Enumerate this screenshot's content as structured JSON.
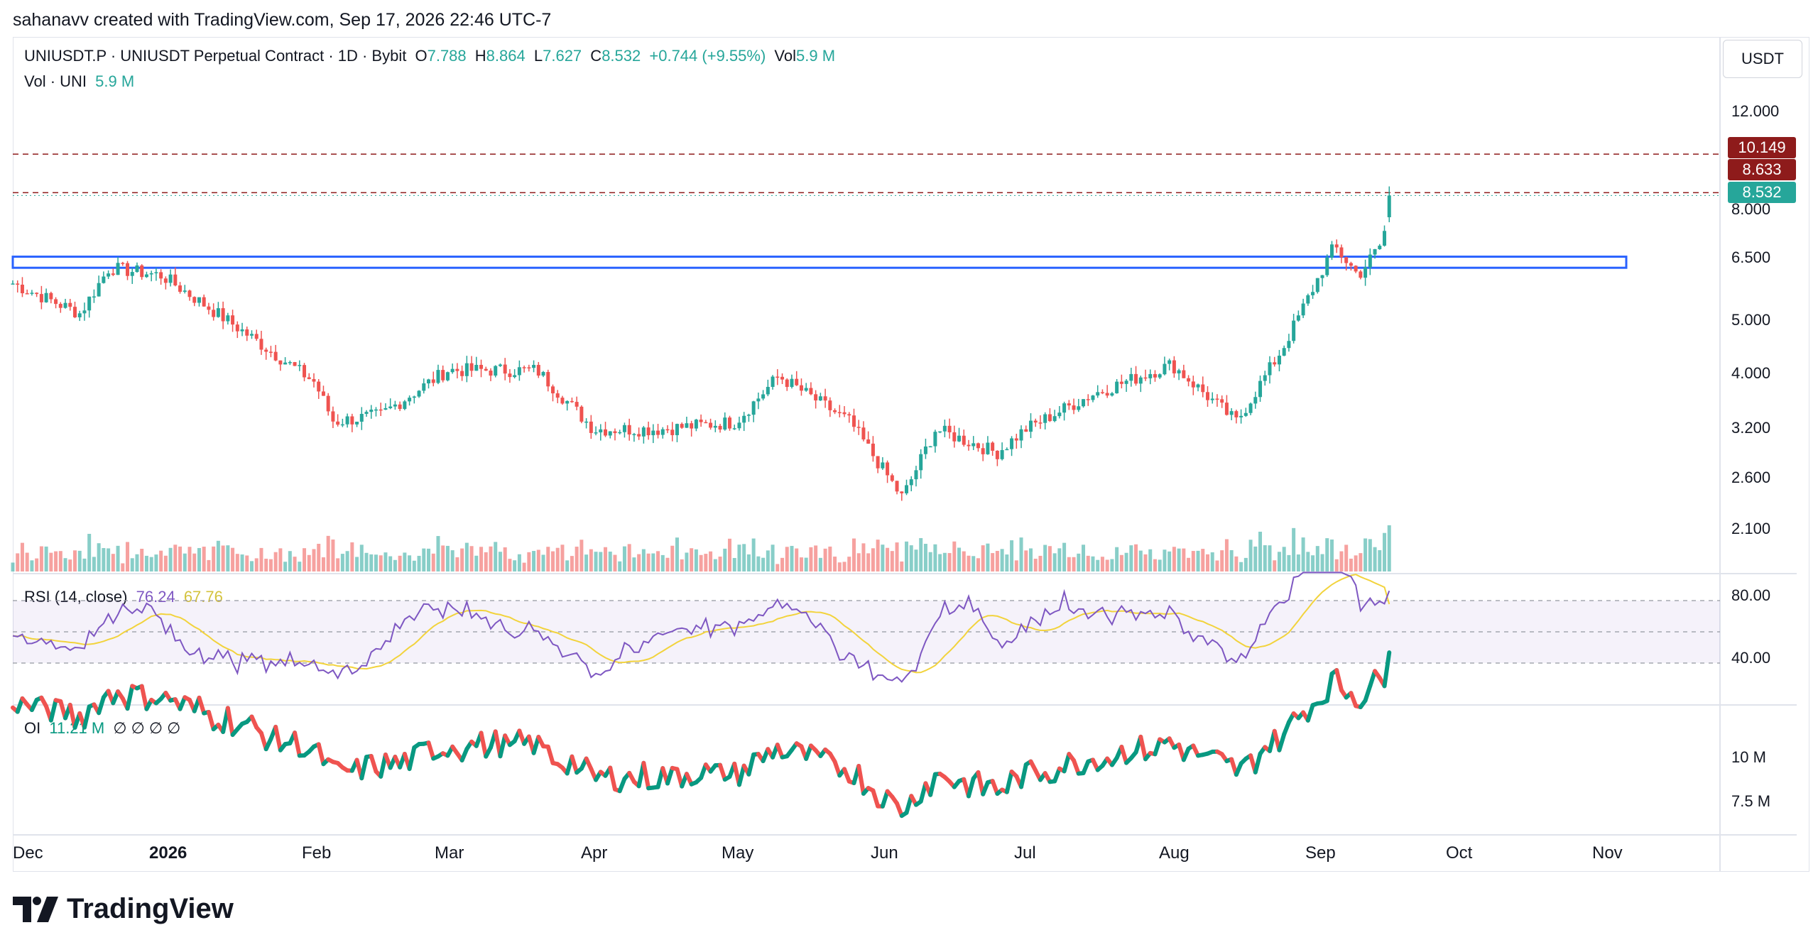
{
  "caption": "sahanavv created with TradingView.com, Sep 17, 2026 22:46 UTC-7",
  "price_axis_title": "USDT",
  "legend_main": {
    "symbol": "UNIUSDT.P · UNIUSDT Perpetual Contract · 1D · Bybit",
    "o_label": "O",
    "o_value": "7.788",
    "h_label": "H",
    "h_value": "8.864",
    "l_label": "L",
    "l_value": "7.627",
    "c_label": "C",
    "c_value": "8.532",
    "change": "+0.744 (+9.55%)",
    "vol_label": "Vol",
    "vol_value": "5.9 M"
  },
  "legend_vol": {
    "label": "Vol · UNI",
    "value": "5.9 M"
  },
  "legend_rsi": {
    "label": "RSI (14, close)",
    "rsi": "76.24",
    "ma": "67.76"
  },
  "legend_oi": {
    "label": "OI",
    "value": "11.21 M",
    "extras": "∅ ∅ ∅ ∅"
  },
  "price_ticks": [
    "12.000",
    "8.000",
    "6.500",
    "5.000",
    "4.000",
    "3.200",
    "2.600",
    "2.100"
  ],
  "price_tags": [
    {
      "value": "10.149",
      "color": "#8e1b1b"
    },
    {
      "value": "8.633",
      "color": "#8e1b1b"
    },
    {
      "value": "8.532",
      "color": "#26a69a"
    }
  ],
  "rsi_ticks": [
    "80.00",
    "40.00"
  ],
  "oi_ticks": [
    "10 M",
    "7.5 M"
  ],
  "time_labels": [
    {
      "text": "Dec",
      "bold": false
    },
    {
      "text": "2026",
      "bold": true
    },
    {
      "text": "Feb",
      "bold": false
    },
    {
      "text": "Mar",
      "bold": false
    },
    {
      "text": "Apr",
      "bold": false
    },
    {
      "text": "May",
      "bold": false
    },
    {
      "text": "Jun",
      "bold": false
    },
    {
      "text": "Jul",
      "bold": false
    },
    {
      "text": "Aug",
      "bold": false
    },
    {
      "text": "Sep",
      "bold": false
    },
    {
      "text": "Oct",
      "bold": false
    },
    {
      "text": "Nov",
      "bold": false
    }
  ],
  "brand": {
    "name": "TradingView",
    "icon": "tradingview-logo-icon"
  },
  "colors": {
    "up": "#26a69a",
    "down": "#ef5350",
    "rsi": "#7e57c2",
    "rsi_ma": "#f2d33c",
    "zone": "#2962ff",
    "level": "#8e1b1b"
  },
  "chart_data": {
    "type": "candlestick",
    "symbol": "UNIUSDT.P",
    "timeframe": "1D",
    "x_range": [
      "Dec 2025",
      "Nov 2026"
    ],
    "y_scale": "log",
    "ohlc_last": {
      "open": 7.788,
      "high": 8.864,
      "low": 7.627,
      "close": 8.532,
      "volume": "5.9 M"
    },
    "close_anchors": [
      {
        "date": "Dec 1",
        "close": 5.9
      },
      {
        "date": "Dec 15",
        "close": 5.2
      },
      {
        "date": "Dec 21",
        "close": 6.3
      },
      {
        "date": "Jan 1",
        "close": 6.1
      },
      {
        "date": "Jan 15",
        "close": 5.0
      },
      {
        "date": "Feb 1",
        "close": 3.9
      },
      {
        "date": "Feb 5",
        "close": 3.3
      },
      {
        "date": "Feb 15",
        "close": 3.4
      },
      {
        "date": "Mar 1",
        "close": 4.1
      },
      {
        "date": "Mar 20",
        "close": 4.1
      },
      {
        "date": "Apr 1",
        "close": 3.2
      },
      {
        "date": "Apr 15",
        "close": 3.2
      },
      {
        "date": "May 1",
        "close": 3.3
      },
      {
        "date": "May 10",
        "close": 4.0
      },
      {
        "date": "May 25",
        "close": 3.3
      },
      {
        "date": "Jun 5",
        "close": 2.4
      },
      {
        "date": "Jun 12",
        "close": 3.2
      },
      {
        "date": "Jun 25",
        "close": 2.9
      },
      {
        "date": "Jul 1",
        "close": 3.2
      },
      {
        "date": "Jul 15",
        "close": 3.7
      },
      {
        "date": "Aug 1",
        "close": 4.2
      },
      {
        "date": "Aug 15",
        "close": 3.3
      },
      {
        "date": "Aug 25",
        "close": 4.5
      },
      {
        "date": "Sep 5",
        "close": 6.9
      },
      {
        "date": "Sep 10",
        "close": 6.1
      },
      {
        "date": "Sep 15",
        "close": 7.0
      },
      {
        "date": "Sep 17",
        "close": 8.532
      }
    ],
    "resistance_zone": [
      6.3,
      6.6
    ],
    "horizontal_levels": [
      10.149,
      8.633
    ],
    "price_ticks": [
      12.0,
      8.0,
      6.5,
      5.0,
      4.0,
      3.2,
      2.6,
      2.1
    ],
    "rsi": {
      "period": 14,
      "last": 76.24,
      "ma": 67.76,
      "bands": [
        30,
        70
      ]
    },
    "open_interest": {
      "last": "11.21 M",
      "ticks": [
        "10 M",
        "7.5 M"
      ]
    }
  }
}
